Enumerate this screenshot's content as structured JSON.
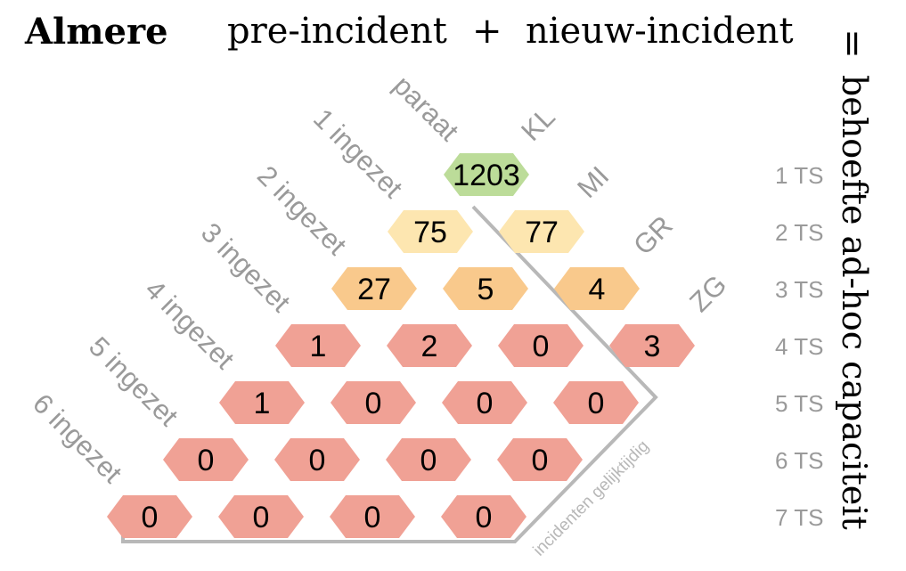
{
  "header": {
    "city": "Almere",
    "pre_label": "pre-incident",
    "plus": "+",
    "new_label": "nieuw-incident",
    "equals": "="
  },
  "side_title": "behoefte ad-hoc capaciteit",
  "state_labels": [
    "paraat",
    "1 ingezet",
    "2 ingezet",
    "3 ingezet",
    "4 ingezet",
    "5 ingezet",
    "6 ingezet"
  ],
  "category_labels": [
    "KL",
    "MI",
    "GR",
    "ZG"
  ],
  "ts_labels": [
    "1 TS",
    "2 TS",
    "3 TS",
    "4 TS",
    "5 TS",
    "6 TS",
    "7 TS"
  ],
  "axis_caption": "incidenten gelijktijdig",
  "colors": {
    "green": "#bcdc99",
    "light_yellow": "#fde6b0",
    "orange": "#f9c98c",
    "salmon": "#f0a195",
    "text_grey": "#9a9a9a",
    "line_grey": "#b8b8b8"
  },
  "chart_data": {
    "type": "table",
    "rows": [
      "1 TS",
      "2 TS",
      "3 TS",
      "4 TS",
      "5 TS",
      "6 TS",
      "7 TS"
    ],
    "cells": [
      {
        "ts": "1 TS",
        "state": "paraat",
        "incident": "KL",
        "value": 1203,
        "color": "green"
      },
      {
        "ts": "2 TS",
        "state": "1 ingezet",
        "incident": "KL",
        "value": 75,
        "color": "light_yellow"
      },
      {
        "ts": "2 TS",
        "state": "paraat",
        "incident": "MI",
        "value": 77,
        "color": "light_yellow"
      },
      {
        "ts": "3 TS",
        "state": "2 ingezet",
        "incident": "KL",
        "value": 27,
        "color": "orange"
      },
      {
        "ts": "3 TS",
        "state": "1 ingezet",
        "incident": "MI",
        "value": 5,
        "color": "orange"
      },
      {
        "ts": "3 TS",
        "state": "paraat",
        "incident": "GR",
        "value": 4,
        "color": "orange"
      },
      {
        "ts": "4 TS",
        "state": "3 ingezet",
        "incident": "KL",
        "value": 1,
        "color": "salmon"
      },
      {
        "ts": "4 TS",
        "state": "2 ingezet",
        "incident": "MI",
        "value": 2,
        "color": "salmon"
      },
      {
        "ts": "4 TS",
        "state": "1 ingezet",
        "incident": "GR",
        "value": 0,
        "color": "salmon"
      },
      {
        "ts": "4 TS",
        "state": "paraat",
        "incident": "ZG",
        "value": 3,
        "color": "salmon"
      },
      {
        "ts": "5 TS",
        "state": "4 ingezet",
        "incident": "KL",
        "value": 1,
        "color": "salmon"
      },
      {
        "ts": "5 TS",
        "state": "3 ingezet",
        "incident": "MI",
        "value": 0,
        "color": "salmon"
      },
      {
        "ts": "5 TS",
        "state": "2 ingezet",
        "incident": "GR",
        "value": 0,
        "color": "salmon"
      },
      {
        "ts": "5 TS",
        "state": "1 ingezet",
        "incident": "ZG",
        "value": 0,
        "color": "salmon"
      },
      {
        "ts": "6 TS",
        "state": "5 ingezet",
        "incident": "KL",
        "value": 0,
        "color": "salmon"
      },
      {
        "ts": "6 TS",
        "state": "4 ingezet",
        "incident": "MI",
        "value": 0,
        "color": "salmon"
      },
      {
        "ts": "6 TS",
        "state": "3 ingezet",
        "incident": "GR",
        "value": 0,
        "color": "salmon"
      },
      {
        "ts": "6 TS",
        "state": "2 ingezet",
        "incident": "ZG",
        "value": 0,
        "color": "salmon"
      },
      {
        "ts": "7 TS",
        "state": "6 ingezet",
        "incident": "KL",
        "value": 0,
        "color": "salmon"
      },
      {
        "ts": "7 TS",
        "state": "5 ingezet",
        "incident": "MI",
        "value": 0,
        "color": "salmon"
      },
      {
        "ts": "7 TS",
        "state": "4 ingezet",
        "incident": "GR",
        "value": 0,
        "color": "salmon"
      },
      {
        "ts": "7 TS",
        "state": "3 ingezet",
        "incident": "ZG",
        "value": 0,
        "color": "salmon"
      }
    ]
  }
}
